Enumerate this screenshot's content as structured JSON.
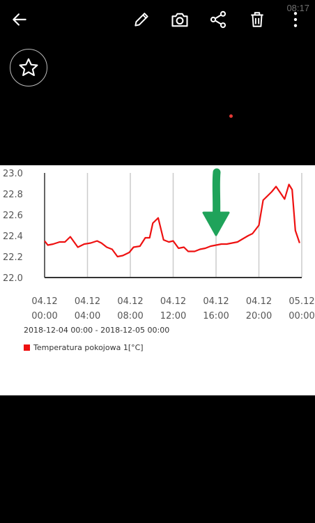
{
  "status_bar": {
    "time": "08:17"
  },
  "toolbar": {
    "back_icon": "arrow-left-icon",
    "edit_icon": "pencil-icon",
    "camera_icon": "camera-icon",
    "share_icon": "share-icon",
    "delete_icon": "trash-icon",
    "more_icon": "more-vertical-icon"
  },
  "favorite": {
    "icon": "star-outline-icon"
  },
  "photo_caption": {
    "range": "2018-12-04 00:00 - 2018-12-05 00:00",
    "legend_label": "Temperatura pokojowa 1[°C]"
  },
  "colors": {
    "background": "#000000",
    "series": "#ee1111",
    "annotation_arrow": "#1fa35a",
    "grid": "#cccccc",
    "axis": "#333333"
  },
  "chart_data": {
    "type": "line",
    "x_tick_labels": [
      [
        "04.12",
        "00:00"
      ],
      [
        "04.12",
        "04:00"
      ],
      [
        "04.12",
        "08:00"
      ],
      [
        "04.12",
        "12:00"
      ],
      [
        "04.12",
        "16:00"
      ],
      [
        "04.12",
        "20:00"
      ],
      [
        "05.12",
        "00:00"
      ]
    ],
    "y_tick_labels": [
      "22.0",
      "22.2",
      "22.4",
      "22.6",
      "22.8",
      "23.0"
    ],
    "ylim": [
      22.0,
      23.0
    ],
    "xlim_hours": [
      0,
      24
    ],
    "grid": "vertical",
    "legend_position": "bottom-left",
    "series": [
      {
        "name": "Temperatura pokojowa 1[°C]",
        "color": "#ee1111",
        "x_hours": [
          0,
          0.3,
          0.8,
          1.4,
          1.9,
          2.4,
          3.1,
          3.7,
          4.3,
          4.9,
          5.3,
          5.8,
          6.3,
          6.8,
          7.3,
          7.9,
          8.3,
          8.9,
          9.4,
          9.8,
          10.1,
          10.6,
          11.1,
          11.6,
          12.0,
          12.5,
          13.0,
          13.4,
          14.0,
          14.5,
          15.0,
          15.5,
          16.0,
          16.5,
          17.0,
          17.5,
          18.0,
          18.5,
          19.0,
          19.4,
          20.0,
          20.4,
          20.8,
          21.2,
          21.6,
          22.0,
          22.4,
          22.8,
          23.1,
          23.4,
          23.8
        ],
        "values": [
          22.35,
          22.31,
          22.32,
          22.34,
          22.34,
          22.39,
          22.29,
          22.32,
          22.33,
          22.35,
          22.33,
          22.29,
          22.27,
          22.2,
          22.21,
          22.24,
          22.29,
          22.3,
          22.38,
          22.38,
          22.52,
          22.57,
          22.36,
          22.34,
          22.35,
          22.28,
          22.29,
          22.25,
          22.25,
          22.27,
          22.28,
          22.3,
          22.31,
          22.32,
          22.32,
          22.33,
          22.34,
          22.37,
          22.4,
          22.42,
          22.5,
          22.74,
          22.78,
          22.82,
          22.87,
          22.81,
          22.75,
          22.89,
          22.84,
          22.45,
          22.33
        ]
      }
    ],
    "annotations": [
      {
        "type": "arrow",
        "direction": "down",
        "color": "#1fa35a",
        "points_to_x_hours": 16
      }
    ]
  }
}
